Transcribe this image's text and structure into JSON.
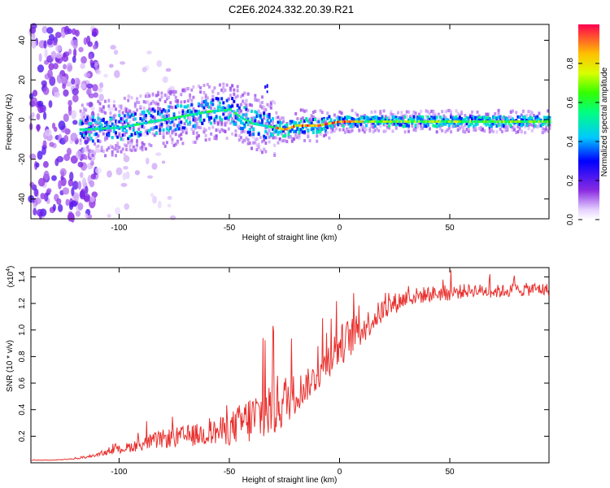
{
  "title": "C2E6.2024.332.20.39.R21",
  "chart_data": [
    {
      "type": "heatmap",
      "xlabel": "Height of straight line (km)",
      "ylabel": "Frequency (Hz)",
      "xlim": [
        -140,
        95
      ],
      "ylim": [
        -50,
        48
      ],
      "xticks": [
        -100,
        -50,
        0,
        50
      ],
      "yticks": [
        -40,
        -20,
        0,
        20,
        40
      ],
      "colorbar": {
        "label": "Normalized spectral amplitude",
        "range": [
          0.0,
          1.0
        ],
        "ticks": [
          "0.0",
          "0.2",
          "0.4",
          "0.6",
          "0.8"
        ]
      },
      "ridge": {
        "x": [
          -115,
          -100,
          -90,
          -80,
          -70,
          -60,
          -50,
          -45,
          -40,
          -35,
          -30,
          -25,
          -20,
          -15,
          -10,
          -5,
          0,
          5,
          10,
          20,
          30,
          40,
          50,
          60,
          70,
          80,
          90,
          95
        ],
        "freq": [
          -5,
          -4,
          -2,
          0,
          2,
          4,
          5,
          1,
          -2,
          -3,
          -4,
          -5,
          -3,
          -3,
          -3,
          -2,
          -1,
          -1,
          -1,
          -1,
          -1,
          -1,
          -1,
          -1,
          -1,
          -1,
          -1,
          -1
        ]
      }
    },
    {
      "type": "line",
      "xlabel": "Height of straight line (km)",
      "ylabel": "SNR (10 * v/v)",
      "yscale_label": "(x10",
      "yscale_exp": "4",
      "yscale_close": ")",
      "xlim": [
        -140,
        95
      ],
      "ylim": [
        0,
        1.47
      ],
      "xticks": [
        -100,
        -50,
        0,
        50
      ],
      "yticks": [
        "0.2",
        "0.4",
        "0.6",
        "0.8",
        "1.0",
        "1.2",
        "1.4"
      ],
      "series": [
        {
          "name": "SNR",
          "color": "#e8312e",
          "x": [
            -140,
            -130,
            -120,
            -115,
            -110,
            -100,
            -90,
            -80,
            -70,
            -60,
            -50,
            -45,
            -40,
            -35,
            -30,
            -25,
            -20,
            -15,
            -10,
            -5,
            0,
            5,
            10,
            15,
            20,
            25,
            30,
            40,
            50,
            60,
            70,
            80,
            90,
            95
          ],
          "y": [
            0.02,
            0.02,
            0.03,
            0.04,
            0.06,
            0.1,
            0.14,
            0.18,
            0.2,
            0.22,
            0.25,
            0.3,
            0.33,
            0.37,
            0.42,
            0.47,
            0.52,
            0.58,
            0.66,
            0.78,
            0.88,
            0.95,
            1.0,
            1.08,
            1.15,
            1.2,
            1.24,
            1.27,
            1.28,
            1.3,
            1.29,
            1.3,
            1.31,
            1.3
          ],
          "noise": [
            0.002,
            0.002,
            0.004,
            0.006,
            0.01,
            0.03,
            0.05,
            0.07,
            0.08,
            0.09,
            0.12,
            0.15,
            0.2,
            0.22,
            0.25,
            0.2,
            0.15,
            0.12,
            0.12,
            0.14,
            0.16,
            0.15,
            0.12,
            0.1,
            0.09,
            0.08,
            0.07,
            0.06,
            0.06,
            0.05,
            0.05,
            0.05,
            0.05,
            0.05
          ]
        }
      ]
    }
  ]
}
